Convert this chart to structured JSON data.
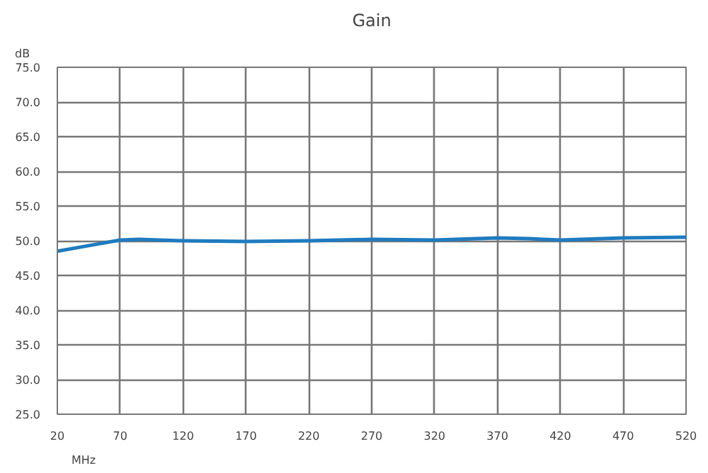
{
  "chart_data": {
    "type": "line",
    "title": "Gain",
    "xlabel": "MHz",
    "ylabel": "dB",
    "x": [
      20,
      45,
      70,
      85,
      120,
      170,
      220,
      270,
      320,
      370,
      395,
      420,
      470,
      520
    ],
    "series": [
      {
        "color": "#1f7bbf",
        "values": [
          48.5,
          49.3,
          50.1,
          50.2,
          50.0,
          49.9,
          50.0,
          50.2,
          50.1,
          50.4,
          50.3,
          50.1,
          50.4,
          50.5
        ]
      }
    ],
    "xlim": [
      20,
      520
    ],
    "xticks": [
      20,
      70,
      120,
      170,
      220,
      270,
      320,
      370,
      420,
      470,
      520
    ],
    "ylim": [
      25,
      75
    ],
    "yticks": [
      {
        "value": 25,
        "label": "25.0"
      },
      {
        "value": 30,
        "label": "30.0"
      },
      {
        "value": 35,
        "label": "35.0"
      },
      {
        "value": 40,
        "label": "40.0"
      },
      {
        "value": 45,
        "label": "45.0"
      },
      {
        "value": 50,
        "label": "50.0"
      },
      {
        "value": 55,
        "label": "55.0"
      },
      {
        "value": 60,
        "label": "60.0"
      },
      {
        "value": 65,
        "label": "65.0"
      },
      {
        "value": 70,
        "label": "70.0"
      },
      {
        "value": 75,
        "label": "75.0"
      }
    ],
    "grid": true,
    "marker": "none",
    "line_style": "solid"
  }
}
